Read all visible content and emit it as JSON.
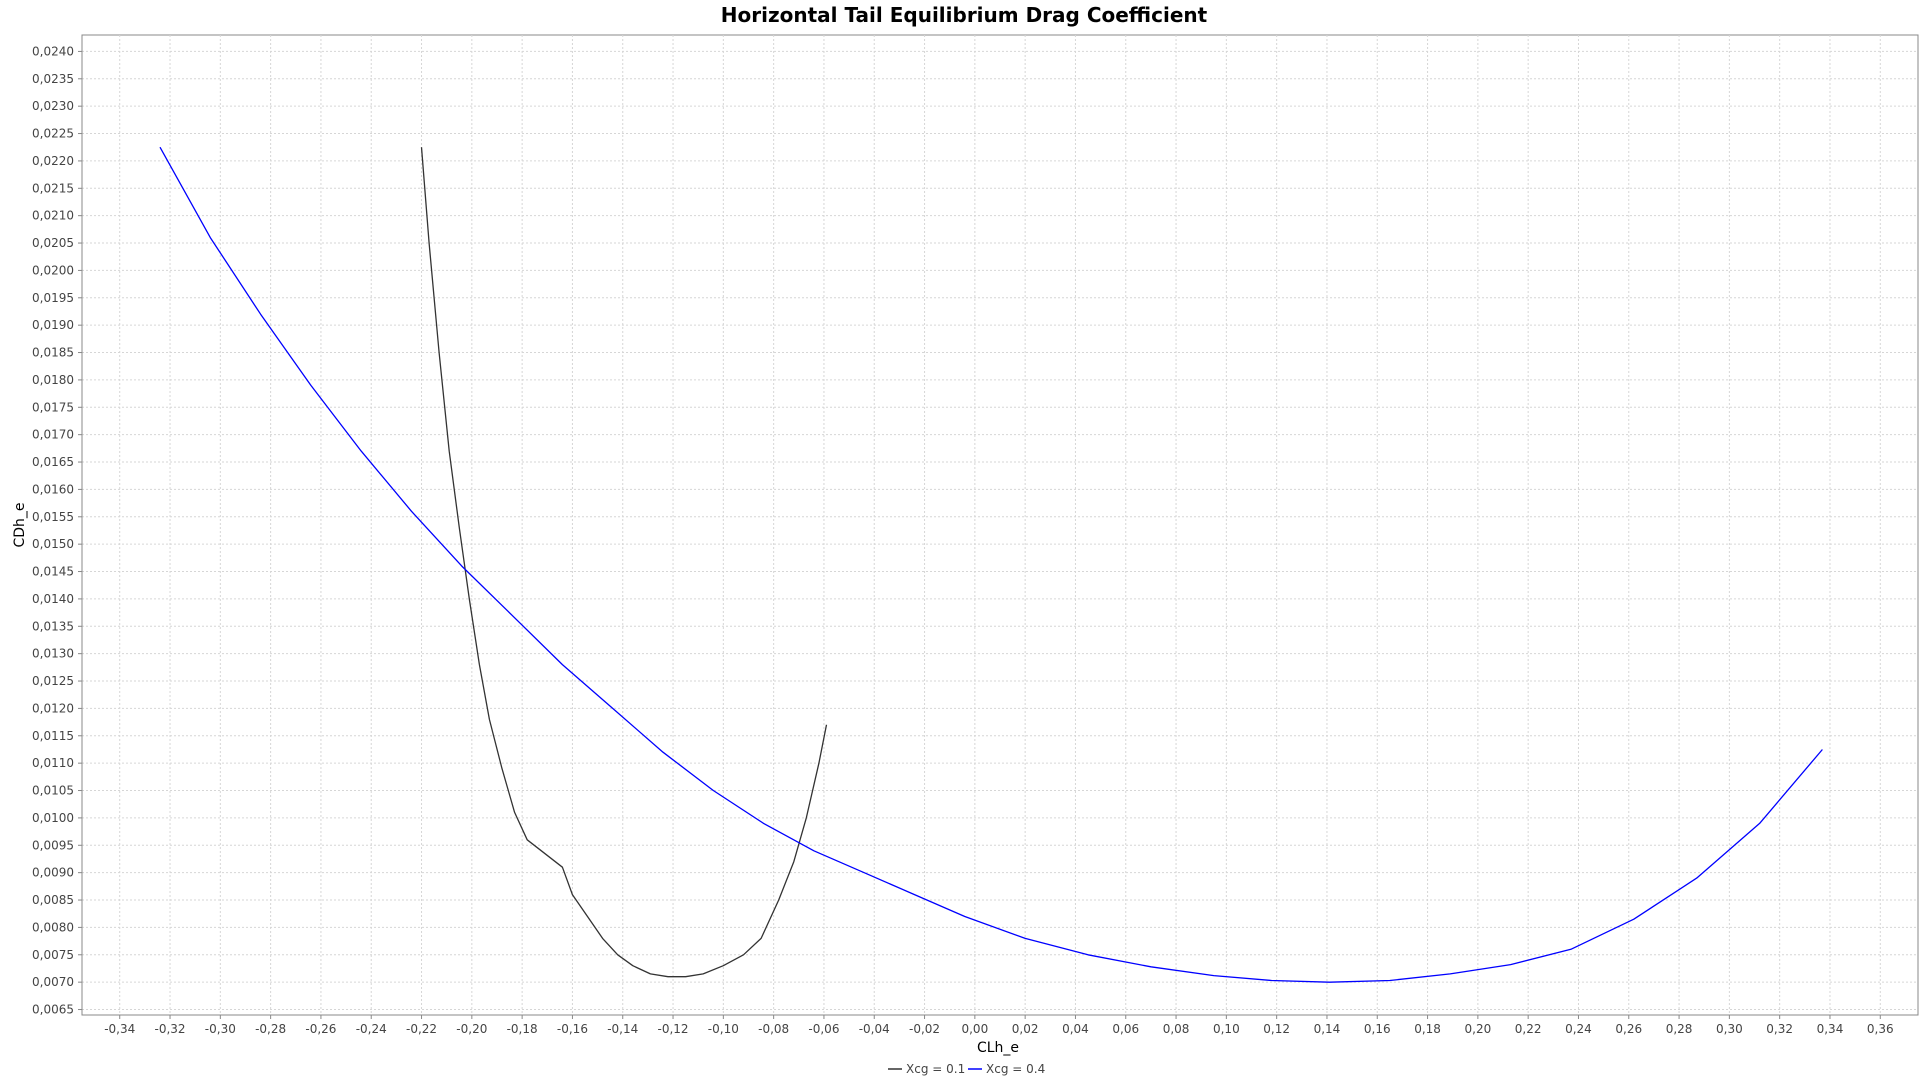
{
  "chart_data": {
    "type": "line",
    "title": "Horizontal Tail Equilibrium Drag Coefficient",
    "xlabel": "CLh_e",
    "ylabel": "CDh_e",
    "xlim": [
      -0.355,
      0.375
    ],
    "ylim": [
      0.0064,
      0.0243
    ],
    "grid": true,
    "legend_position": "bottom-center",
    "x_ticks": [
      -0.34,
      -0.32,
      -0.3,
      -0.28,
      -0.26,
      -0.24,
      -0.22,
      -0.2,
      -0.18,
      -0.16,
      -0.14,
      -0.12,
      -0.1,
      -0.08,
      -0.06,
      -0.04,
      -0.02,
      0.0,
      0.02,
      0.04,
      0.06,
      0.08,
      0.1,
      0.12,
      0.14,
      0.16,
      0.18,
      0.2,
      0.22,
      0.24,
      0.26,
      0.28,
      0.3,
      0.32,
      0.34,
      0.36
    ],
    "x_tick_labels": [
      "-0,34",
      "-0,32",
      "-0,30",
      "-0,28",
      "-0,26",
      "-0,24",
      "-0,22",
      "-0,20",
      "-0,18",
      "-0,16",
      "-0,14",
      "-0,12",
      "-0,10",
      "-0,08",
      "-0,06",
      "-0,04",
      "-0,02",
      "0,00",
      "0,02",
      "0,04",
      "0,06",
      "0,08",
      "0,10",
      "0,12",
      "0,14",
      "0,16",
      "0,18",
      "0,20",
      "0,22",
      "0,24",
      "0,26",
      "0,28",
      "0,30",
      "0,32",
      "0,34",
      "0,36"
    ],
    "y_ticks": [
      0.0065,
      0.007,
      0.0075,
      0.008,
      0.0085,
      0.009,
      0.0095,
      0.01,
      0.0105,
      0.011,
      0.0115,
      0.012,
      0.0125,
      0.013,
      0.0135,
      0.014,
      0.0145,
      0.015,
      0.0155,
      0.016,
      0.0165,
      0.017,
      0.0175,
      0.018,
      0.0185,
      0.019,
      0.0195,
      0.02,
      0.0205,
      0.021,
      0.0215,
      0.022,
      0.0225,
      0.023,
      0.0235,
      0.024
    ],
    "y_tick_labels": [
      "0,0065",
      "0,0070",
      "0,0075",
      "0,0080",
      "0,0085",
      "0,0090",
      "0,0095",
      "0,0100",
      "0,0105",
      "0,0110",
      "0,0115",
      "0,0120",
      "0,0125",
      "0,0130",
      "0,0135",
      "0,0140",
      "0,0145",
      "0,0150",
      "0,0155",
      "0,0160",
      "0,0165",
      "0,0170",
      "0,0175",
      "0,0180",
      "0,0185",
      "0,0190",
      "0,0195",
      "0,0200",
      "0,0205",
      "0,0210",
      "0,0215",
      "0,0220",
      "0,0225",
      "0,0230",
      "0,0235",
      "0,0240"
    ],
    "series": [
      {
        "name": "Xcg = 0.1",
        "color": "#333333",
        "points": [
          [
            -0.22,
            0.02225
          ],
          [
            -0.217,
            0.0205
          ],
          [
            -0.213,
            0.0185
          ],
          [
            -0.209,
            0.0167
          ],
          [
            -0.205,
            0.0153
          ],
          [
            -0.201,
            0.014
          ],
          [
            -0.197,
            0.0128
          ],
          [
            -0.193,
            0.0118
          ],
          [
            -0.188,
            0.0109
          ],
          [
            -0.183,
            0.0101
          ],
          [
            -0.178,
            0.0096
          ],
          [
            -0.164,
            0.0091
          ],
          [
            -0.16,
            0.0086
          ],
          [
            -0.154,
            0.0082
          ],
          [
            -0.148,
            0.0078
          ],
          [
            -0.142,
            0.0075
          ],
          [
            -0.136,
            0.0073
          ],
          [
            -0.129,
            0.00715
          ],
          [
            -0.122,
            0.0071
          ],
          [
            -0.115,
            0.0071
          ],
          [
            -0.108,
            0.00715
          ],
          [
            -0.1,
            0.0073
          ],
          [
            -0.092,
            0.0075
          ],
          [
            -0.085,
            0.0078
          ],
          [
            -0.078,
            0.0085
          ],
          [
            -0.072,
            0.0092
          ],
          [
            -0.067,
            0.01
          ],
          [
            -0.062,
            0.011
          ],
          [
            -0.059,
            0.0117
          ]
        ]
      },
      {
        "name": "Xcg = 0.4",
        "color": "#0000ff",
        "points": [
          [
            -0.324,
            0.02225
          ],
          [
            -0.304,
            0.0206
          ],
          [
            -0.284,
            0.0192
          ],
          [
            -0.264,
            0.0179
          ],
          [
            -0.244,
            0.0167
          ],
          [
            -0.224,
            0.0156
          ],
          [
            -0.204,
            0.0146
          ],
          [
            -0.184,
            0.0137
          ],
          [
            -0.164,
            0.0128
          ],
          [
            -0.144,
            0.012
          ],
          [
            -0.124,
            0.0112
          ],
          [
            -0.104,
            0.0105
          ],
          [
            -0.084,
            0.0099
          ],
          [
            -0.064,
            0.0094
          ],
          [
            -0.044,
            0.009
          ],
          [
            -0.024,
            0.0086
          ],
          [
            -0.004,
            0.0082
          ],
          [
            0.02,
            0.0078
          ],
          [
            0.045,
            0.0075
          ],
          [
            0.07,
            0.00728
          ],
          [
            0.095,
            0.00712
          ],
          [
            0.118,
            0.00703
          ],
          [
            0.141,
            0.007
          ],
          [
            0.165,
            0.00703
          ],
          [
            0.189,
            0.00715
          ],
          [
            0.213,
            0.00732
          ],
          [
            0.237,
            0.0076
          ],
          [
            0.262,
            0.00815
          ],
          [
            0.287,
            0.0089
          ],
          [
            0.312,
            0.0099
          ],
          [
            0.337,
            0.01125
          ]
        ]
      }
    ]
  }
}
